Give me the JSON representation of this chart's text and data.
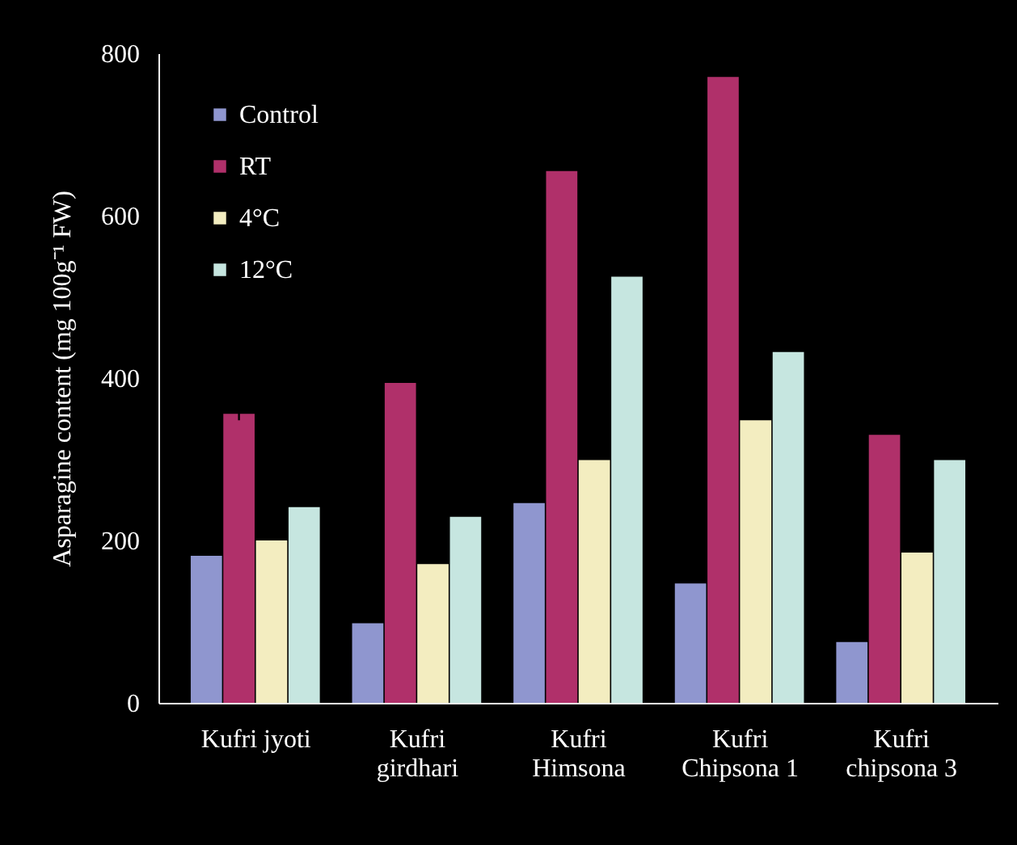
{
  "chart_data": {
    "type": "bar",
    "ylabel": "Asparagine content (mg 100g⁻¹ FW)",
    "categories": [
      "Kufri jyoti",
      "Kufri girdhari",
      "Kufri Himsona",
      "Kufri Chipsona 1",
      "Kufri chipsona 3"
    ],
    "series": [
      {
        "name": "Control",
        "color": "#8f96cf",
        "values": [
          181,
          98,
          246,
          147,
          75
        ]
      },
      {
        "name": "RT",
        "color": "#b0306a",
        "values": [
          356,
          394,
          655,
          771,
          330
        ],
        "errors": [
          8,
          null,
          null,
          null,
          null
        ]
      },
      {
        "name": "4°C",
        "color": "#f3edc0",
        "values": [
          200,
          171,
          299,
          348,
          185
        ]
      },
      {
        "name": "12°C",
        "color": "#c6e6e0",
        "values": [
          241,
          229,
          525,
          432,
          299
        ]
      }
    ],
    "ylim": [
      0,
      800
    ],
    "yticks": [
      0,
      200,
      400,
      600,
      800
    ],
    "grid": false,
    "legend": "top left"
  }
}
